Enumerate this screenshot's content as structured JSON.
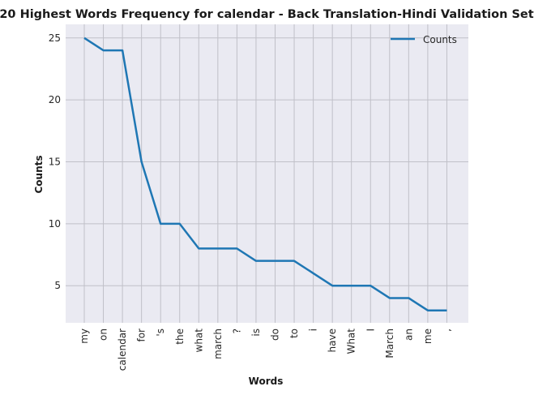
{
  "chart_data": {
    "type": "line",
    "title": "20 Highest Words Frequency for calendar - Back Translation-Hindi Validation Set",
    "xlabel": "Words",
    "ylabel": "Counts",
    "categories": [
      "my",
      "on",
      "calendar",
      "for",
      "'s",
      "the",
      "what",
      "march",
      "?",
      "is",
      "do",
      "to",
      "i",
      "have",
      "What",
      "I",
      "March",
      "an",
      "me",
      ","
    ],
    "series": [
      {
        "name": "Counts",
        "values": [
          25,
          24,
          24,
          15,
          10,
          10,
          8,
          8,
          8,
          7,
          7,
          7,
          6,
          5,
          5,
          5,
          4,
          4,
          3,
          3
        ]
      }
    ],
    "ylim": [
      2,
      26.1
    ],
    "yticks": [
      5,
      10,
      15,
      20,
      25
    ],
    "grid": true,
    "legend_position": "top-right",
    "colors": {
      "line": "#1f77b4",
      "plot_bg": "#eaeaf2",
      "grid": "#c0c0c8"
    }
  }
}
